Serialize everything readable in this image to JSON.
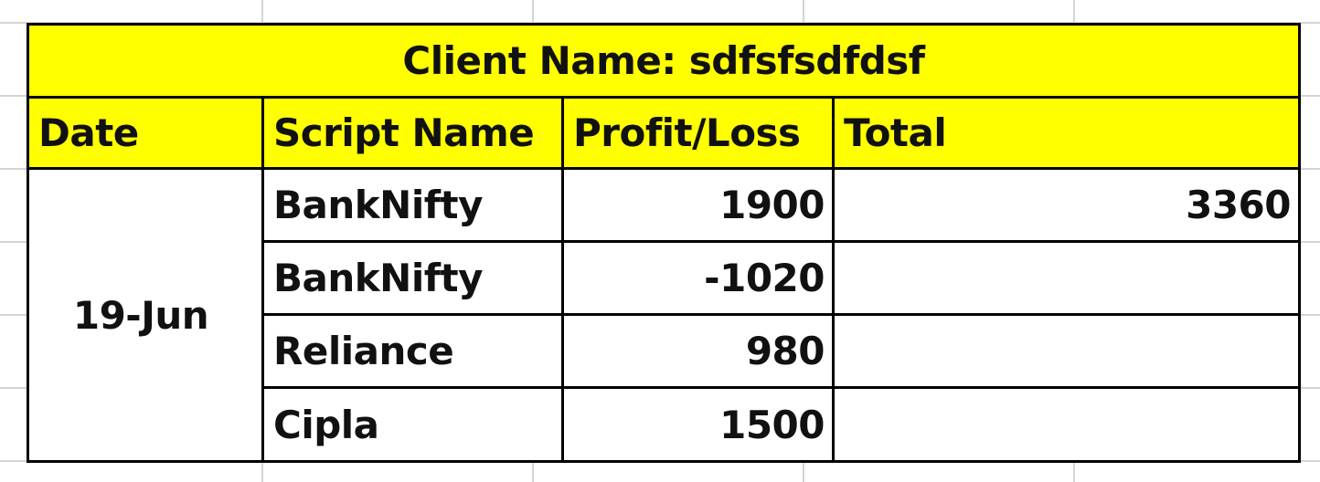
{
  "title": "Client Name: sdfsfsdfdsf",
  "headers": {
    "date": "Date",
    "script": "Script Name",
    "pl": "Profit/Loss",
    "total": "Total"
  },
  "date": "19-Jun",
  "rows": [
    {
      "script": "BankNifty",
      "pl": "1900",
      "total": "3360"
    },
    {
      "script": "BankNifty",
      "pl": "-1020",
      "total": ""
    },
    {
      "script": "Reliance",
      "pl": "980",
      "total": ""
    },
    {
      "script": "Cipla",
      "pl": "1500",
      "total": ""
    }
  ],
  "colors": {
    "header_fill": "#ffff00",
    "border": "#000000",
    "gridline": "#d4d4d4"
  }
}
